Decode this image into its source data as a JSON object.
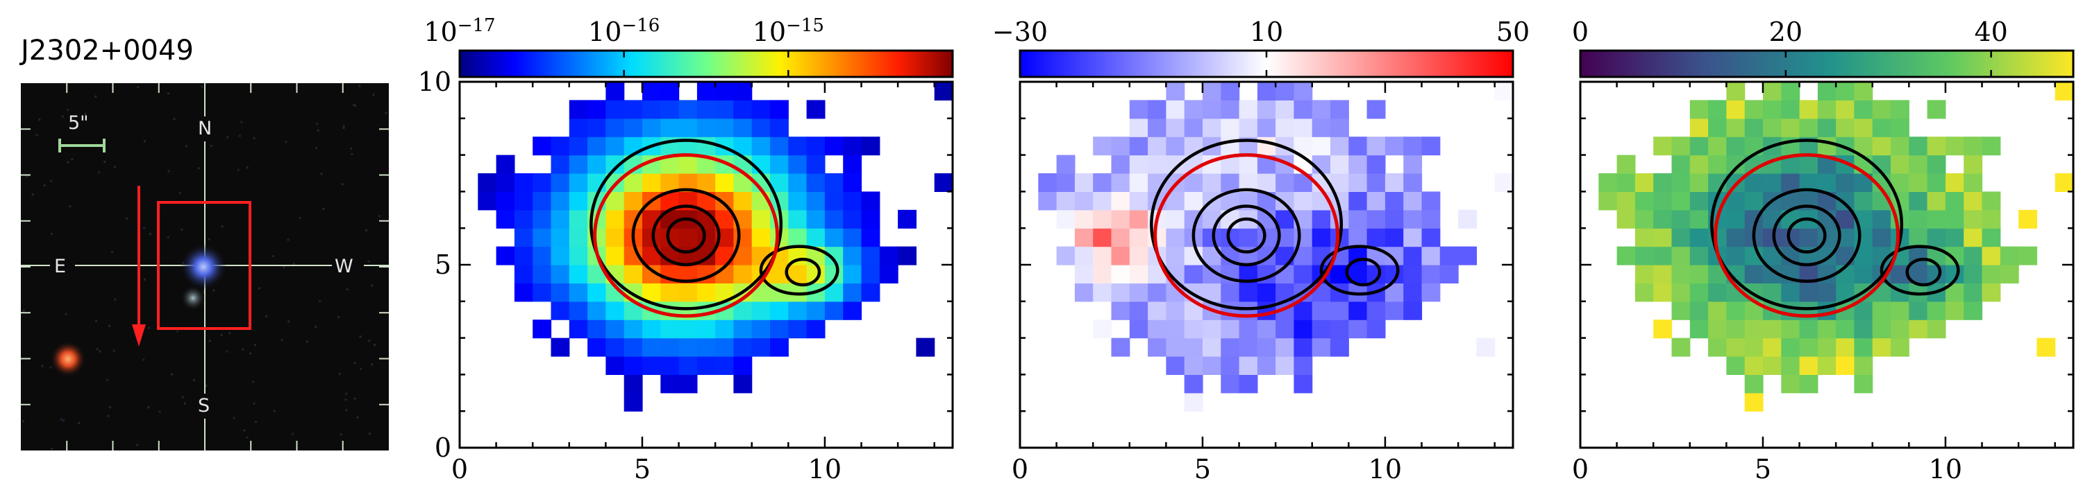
{
  "object_name": "J2302+0049",
  "thumbnail": {
    "scale_label": "5\"",
    "compass": {
      "north": "N",
      "south": "S",
      "east": "E",
      "west": "W"
    },
    "colors": {
      "background": "#0b0b0b",
      "grid": "#cfe3c8",
      "box": "#ff2020",
      "arrow": "#ff2020"
    }
  },
  "chart_data": [
    {
      "type": "heatmap",
      "name": "flux map",
      "xlim": [
        0,
        13.5
      ],
      "ylim": [
        0,
        10
      ],
      "xticks": [
        0,
        5,
        10
      ],
      "yticks": [
        0,
        5,
        10
      ],
      "colorbar": {
        "colormap": "jet",
        "scale": "log",
        "range": [
          1e-17,
          1e-14
        ],
        "ticks": [
          {
            "base": "10",
            "exp": "−17",
            "value": 1e-17
          },
          {
            "base": "10",
            "exp": "−16",
            "value": 1e-16
          },
          {
            "base": "10",
            "exp": "−15",
            "value": 1e-15
          }
        ]
      },
      "field": "flux",
      "show_y_tick_labels": true
    },
    {
      "type": "heatmap",
      "name": "velocity map",
      "xlim": [
        0,
        13.5
      ],
      "ylim": [
        0,
        10
      ],
      "xticks": [
        0,
        5,
        10
      ],
      "yticks": [
        0,
        5,
        10
      ],
      "colorbar": {
        "colormap": "bwr",
        "scale": "linear",
        "range": [
          -30,
          50
        ],
        "ticks": [
          {
            "label": "−30",
            "value": -30
          },
          {
            "label": "10",
            "value": 10
          },
          {
            "label": "50",
            "value": 50
          }
        ]
      },
      "field": "velocity",
      "show_y_tick_labels": false
    },
    {
      "type": "heatmap",
      "name": "dispersion map",
      "xlim": [
        0,
        13.5
      ],
      "ylim": [
        0,
        10
      ],
      "xticks": [
        0,
        5,
        10
      ],
      "yticks": [
        0,
        5,
        10
      ],
      "colorbar": {
        "colormap": "viridis",
        "scale": "linear",
        "range": [
          0,
          48
        ],
        "ticks": [
          {
            "label": "0",
            "value": 0
          },
          {
            "label": "20",
            "value": 20
          },
          {
            "label": "40",
            "value": 40
          }
        ]
      },
      "field": "dispersion",
      "show_y_tick_labels": false
    }
  ],
  "overlay": {
    "ellipse": {
      "center": [
        6.2,
        5.8
      ],
      "rx": 2.5,
      "ry": 2.2,
      "color": "#e00000"
    },
    "contours": [
      {
        "center": [
          6.2,
          5.8
        ],
        "rx": 0.5,
        "ry": 0.45
      },
      {
        "center": [
          6.2,
          5.8
        ],
        "rx": 0.9,
        "ry": 0.8
      },
      {
        "center": [
          6.2,
          5.8
        ],
        "rx": 1.45,
        "ry": 1.25
      },
      {
        "center": [
          6.2,
          6.1
        ],
        "rx": 2.6,
        "ry": 2.3
      },
      {
        "center": [
          9.4,
          4.8
        ],
        "rx": 0.45,
        "ry": 0.35
      },
      {
        "center": [
          9.3,
          4.85
        ],
        "rx": 1.05,
        "ry": 0.65
      }
    ]
  },
  "x_axis_label_values": [
    "0",
    "5",
    "10"
  ],
  "y_axis_label_values": [
    "0",
    "5",
    "10"
  ]
}
